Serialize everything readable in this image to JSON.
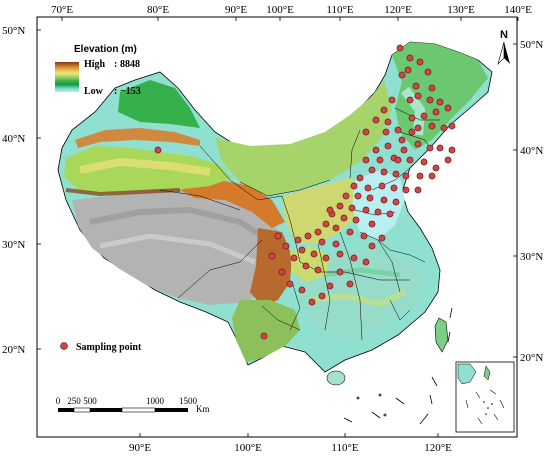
{
  "map": {
    "legend": {
      "title": "Elevation (m)",
      "high_label": "High",
      "high_value": "8848",
      "low_label": "Low",
      "low_value": "−153",
      "colors": [
        "#7a3a1c",
        "#c6741e",
        "#e2b24a",
        "#f4e37c",
        "#9fd268",
        "#3fb44a",
        "#0e9a4a",
        "#78d5bf",
        "#b8f0f2"
      ]
    },
    "sampling_legend": "Sampling point",
    "north_label": "N",
    "scale_bar": {
      "ticks": [
        "0",
        "250",
        "500",
        "1000",
        "1500"
      ],
      "unit": "Km"
    },
    "top_ticks": [
      "70°E",
      "80°E",
      "90°E",
      "100°E",
      "110°E",
      "120°E",
      "130°E",
      "140°E"
    ],
    "bottom_ticks": [
      "90°E",
      "100°E",
      "110°E",
      "120°E"
    ],
    "left_ticks": [
      "50°N",
      "40°N",
      "30°N",
      "20°N"
    ],
    "right_ticks": [
      "50°N",
      "40°N",
      "30°N",
      "20°N"
    ],
    "colors": {
      "point_fill": "#d04646",
      "point_stroke": "#5a1010",
      "frame": "#000000"
    }
  }
}
